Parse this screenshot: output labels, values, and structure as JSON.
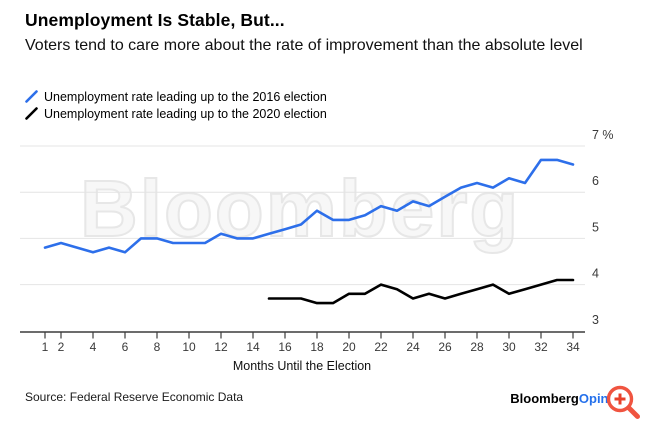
{
  "header": {
    "title": "Unemployment Is Stable, But...",
    "subtitle": "Voters tend to care more about the rate of improvement than the absolute level"
  },
  "legend": {
    "items": [
      {
        "label": "Unemployment rate leading up to the 2016 election",
        "color": "#2d6fea"
      },
      {
        "label": "Unemployment rate leading up to the 2020 election",
        "color": "#000000"
      }
    ]
  },
  "chart_data": {
    "type": "line",
    "watermark": "Bloomberg",
    "x_axis": {
      "title": "Months Until the Election",
      "direction": "decreasing",
      "range": [
        34,
        1
      ],
      "tick_months": [
        34,
        32,
        30,
        28,
        26,
        24,
        22,
        20,
        18,
        16,
        14,
        12,
        10,
        8,
        6,
        4,
        2,
        1
      ]
    },
    "y_axis": {
      "unit": "%",
      "ylim": [
        3,
        7
      ],
      "grid": true,
      "labels_position": "right",
      "ticks": [
        {
          "value": 7,
          "label": "7 %"
        },
        {
          "value": 6,
          "label": "6"
        },
        {
          "value": 5,
          "label": "5"
        },
        {
          "value": 4,
          "label": "4"
        },
        {
          "value": 3,
          "label": "3"
        }
      ]
    },
    "series": [
      {
        "name": "Unemployment rate leading up to the 2016 election",
        "color": "#2d6fea",
        "months": [
          34,
          33,
          32,
          31,
          30,
          29,
          28,
          27,
          26,
          25,
          24,
          23,
          22,
          21,
          20,
          19,
          18,
          17,
          16,
          15,
          14,
          13,
          12,
          11,
          10,
          9,
          8,
          7,
          6,
          5,
          4,
          3,
          2,
          1
        ],
        "values": [
          6.6,
          6.7,
          6.7,
          6.2,
          6.3,
          6.1,
          6.2,
          6.1,
          5.9,
          5.7,
          5.8,
          5.6,
          5.7,
          5.5,
          5.4,
          5.4,
          5.6,
          5.3,
          5.2,
          5.1,
          5.0,
          5.0,
          5.1,
          4.9,
          4.9,
          4.9,
          5.0,
          5.0,
          4.7,
          4.8,
          4.7,
          4.8,
          4.9,
          4.8
        ]
      },
      {
        "name": "Unemployment rate leading up to the 2020 election",
        "color": "#000000",
        "months": [
          34,
          33,
          32,
          31,
          30,
          29,
          28,
          27,
          26,
          25,
          24,
          23,
          22,
          21,
          20,
          19,
          18,
          17,
          16,
          15
        ],
        "values": [
          4.1,
          4.1,
          4.0,
          3.9,
          3.8,
          4.0,
          3.9,
          3.8,
          3.7,
          3.8,
          3.7,
          3.9,
          4.0,
          3.8,
          3.8,
          3.6,
          3.6,
          3.7,
          3.7,
          3.7
        ]
      }
    ],
    "colors": {
      "grid": "#e4e4e4",
      "axis": "#3c3c3c",
      "tick_text": "#3a3a3a",
      "axis_title": "#111111"
    }
  },
  "footer": {
    "source": "Source: Federal Reserve Economic Data",
    "brand": {
      "primary": "Bloomberg",
      "secondary": "Opinion",
      "secondary_color": "#2470eb"
    }
  },
  "icons": {
    "magnifier": "zoom-in-magnifier",
    "legend_marker": "diagonal-slash"
  }
}
